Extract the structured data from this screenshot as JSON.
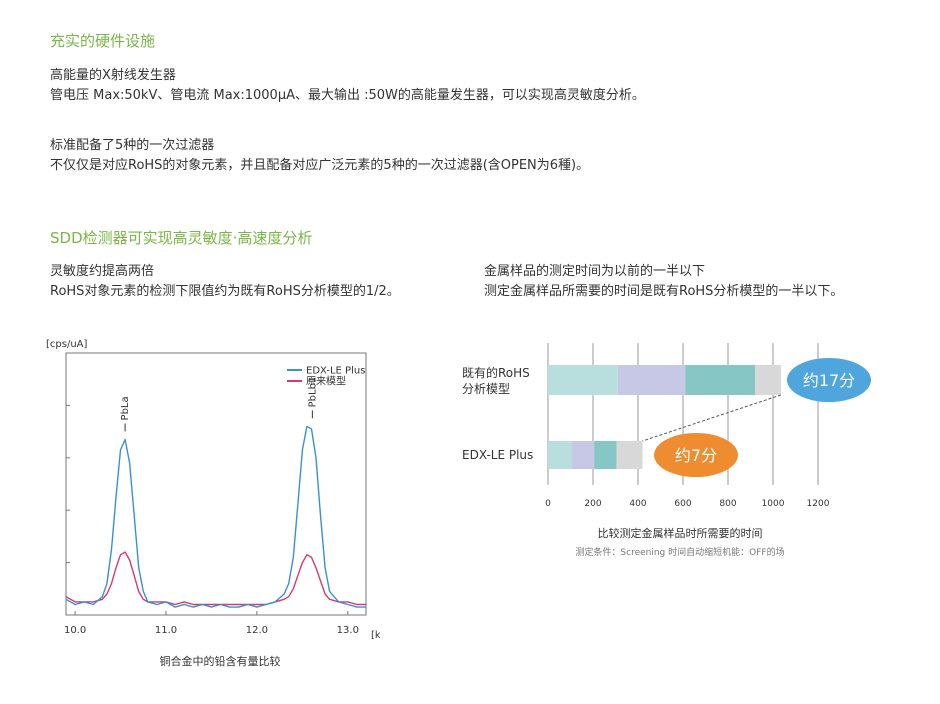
{
  "section1": {
    "title": "充实的硬件设施",
    "block1": {
      "line1": "高能量的X射线发生器",
      "line2": "管电压 Max:50kV、管电流 Max:1000μA、最大输出 :50W的高能量发生器，可以实现高灵敏度分析。"
    },
    "block2": {
      "line1": "标准配备了5种的一次过滤器",
      "line2": "不仅仅是对应RoHS的对象元素，并且配备对应广泛元素的5种的一次过滤器(含OPEN为6種)。"
    }
  },
  "section2": {
    "title": "SDD检测器可实现高灵敏度·高速度分析",
    "left": {
      "line1": "灵敏度约提高两倍",
      "line2": "RoHS对象元素的检测下限值约为既有RoHS分析模型的1/2。"
    },
    "right": {
      "line1": "金属样品的测定时间为以前的一半以下",
      "line2": "测定金属样品所需要的时间是既有RoHS分析模型的一半以下。"
    }
  },
  "chart_data": [
    {
      "type": "line",
      "ylabel": "[cps/uA]",
      "xlabel": "[keV]",
      "caption": "铜合金中的铅含有量比较",
      "xlim": [
        9.9,
        13.2
      ],
      "ylim": [
        0,
        100
      ],
      "x_ticks": [
        "10.0",
        "11.0",
        "12.0",
        "13.0"
      ],
      "peaks": [
        {
          "label": "PbLa",
          "x": 10.55
        },
        {
          "label": "PbLb1",
          "x": 12.61
        }
      ],
      "series": [
        {
          "name": "EDX-LE Plus",
          "color": "#3a8fd6",
          "x": [
            9.9,
            10.0,
            10.1,
            10.2,
            10.3,
            10.35,
            10.4,
            10.45,
            10.5,
            10.55,
            10.6,
            10.65,
            10.7,
            10.75,
            10.8,
            10.9,
            11.0,
            11.1,
            11.2,
            11.3,
            11.4,
            11.5,
            11.6,
            11.7,
            11.8,
            11.9,
            12.0,
            12.1,
            12.2,
            12.3,
            12.35,
            12.4,
            12.45,
            12.5,
            12.55,
            12.6,
            12.65,
            12.7,
            12.75,
            12.8,
            12.9,
            13.0,
            13.1,
            13.2
          ],
          "y": [
            6,
            4,
            5,
            4,
            7,
            12,
            25,
            45,
            63,
            67,
            58,
            38,
            18,
            9,
            5,
            4,
            5,
            3,
            4,
            3,
            4,
            3,
            4,
            3,
            3,
            4,
            3,
            4,
            5,
            8,
            12,
            22,
            42,
            63,
            72,
            71,
            60,
            38,
            18,
            9,
            5,
            4,
            3,
            3
          ]
        },
        {
          "name": "原来模型",
          "color": "#d33a6e",
          "x": [
            9.9,
            10.0,
            10.1,
            10.2,
            10.3,
            10.35,
            10.4,
            10.45,
            10.5,
            10.55,
            10.6,
            10.65,
            10.7,
            10.75,
            10.8,
            10.9,
            11.0,
            11.1,
            11.2,
            11.3,
            11.4,
            11.5,
            11.6,
            11.7,
            11.8,
            11.9,
            12.0,
            12.1,
            12.2,
            12.3,
            12.35,
            12.4,
            12.45,
            12.5,
            12.55,
            12.6,
            12.65,
            12.7,
            12.75,
            12.8,
            12.9,
            13.0,
            13.1,
            13.2
          ],
          "y": [
            7,
            5,
            5,
            5,
            6,
            8,
            12,
            18,
            23,
            24,
            21,
            15,
            9,
            6,
            5,
            5,
            5,
            4,
            5,
            4,
            4,
            4,
            4,
            4,
            4,
            4,
            4,
            4,
            5,
            6,
            7,
            10,
            15,
            20,
            23,
            22,
            18,
            13,
            8,
            6,
            5,
            5,
            4,
            4
          ]
        }
      ]
    },
    {
      "type": "bar",
      "stacked": true,
      "orientation": "horizontal",
      "title": "比较测定金属样品时所需要的时间",
      "subtitle": "测定条件：Screening 时间自动缩短机能：OFF的场",
      "xlim": [
        0,
        1200
      ],
      "x_ticks": [
        "0",
        "200",
        "400",
        "600",
        "800",
        "1000",
        "1200"
      ],
      "categories": [
        {
          "line1": "既有的RoHS",
          "line2": "分析模型"
        },
        {
          "line1": "EDX-LE Plus",
          "line2": ""
        }
      ],
      "segments": [
        [
          {
            "value": 310,
            "color": "#b8dede"
          },
          {
            "value": 300,
            "color": "#c7c7e6"
          },
          {
            "value": 310,
            "color": "#86c6c4"
          },
          {
            "value": 115,
            "color": "#d8d8d8"
          }
        ],
        [
          {
            "value": 105,
            "color": "#b8dede"
          },
          {
            "value": 100,
            "color": "#c7c7e6"
          },
          {
            "value": 100,
            "color": "#86c6c4"
          },
          {
            "value": 115,
            "color": "#d8d8d8"
          }
        ]
      ],
      "badges": [
        {
          "text": "约17分",
          "color": "#4ea6dc"
        },
        {
          "text": "约7分",
          "color": "#ef8c2f"
        }
      ]
    }
  ]
}
